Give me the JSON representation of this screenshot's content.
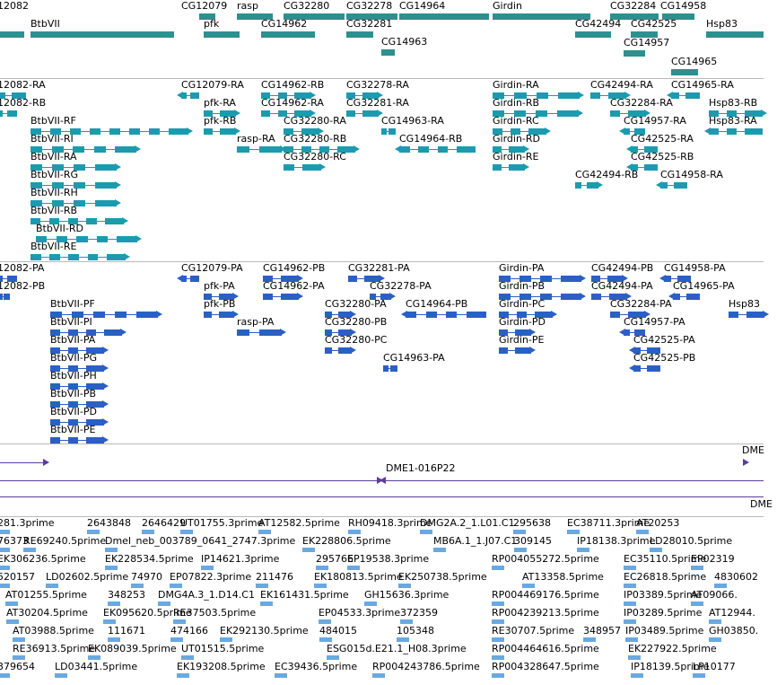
{
  "genes": [
    {
      "label": "12082"
    },
    {
      "label": "BtbVII"
    },
    {
      "label": "CG12079"
    },
    {
      "label": "pfk"
    },
    {
      "label": "rasp"
    },
    {
      "label": "CG32280"
    },
    {
      "label": "CG14962"
    },
    {
      "label": "CG32278"
    },
    {
      "label": "CG32281"
    },
    {
      "label": "CG14963"
    },
    {
      "label": "CG14964"
    },
    {
      "label": "Girdin"
    },
    {
      "label": "CG42494"
    },
    {
      "label": "CG32284"
    },
    {
      "label": "CG14958"
    },
    {
      "label": "CG42525"
    },
    {
      "label": "CG14957"
    },
    {
      "label": "Hsp83"
    },
    {
      "label": "CG14965"
    }
  ],
  "transcripts": [
    {
      "label": "12082-RA"
    },
    {
      "label": "12082-RB"
    },
    {
      "label": "BtbVII-RF"
    },
    {
      "label": "BtbVII-RI"
    },
    {
      "label": "BtbVII-RA"
    },
    {
      "label": "BtbVII-RG"
    },
    {
      "label": "BtbVII-RH"
    },
    {
      "label": "BtbVII-RB"
    },
    {
      "label": "BtbVII-RD"
    },
    {
      "label": "BtbVII-RE"
    },
    {
      "label": "CG12079-RA"
    },
    {
      "label": "pfk-RA"
    },
    {
      "label": "pfk-RB"
    },
    {
      "label": "rasp-RA"
    },
    {
      "label": "CG14962-RB"
    },
    {
      "label": "CG14962-RA"
    },
    {
      "label": "CG32280-RA"
    },
    {
      "label": "CG32280-RB"
    },
    {
      "label": "CG32280-RC"
    },
    {
      "label": "CG32278-RA"
    },
    {
      "label": "CG32281-RA"
    },
    {
      "label": "CG14963-RA"
    },
    {
      "label": "CG14964-RB"
    },
    {
      "label": "Girdin-RA"
    },
    {
      "label": "Girdin-RB"
    },
    {
      "label": "Girdin-RC"
    },
    {
      "label": "Girdin-RD"
    },
    {
      "label": "Girdin-RE"
    },
    {
      "label": "CG42494-RA"
    },
    {
      "label": "CG42494-RB"
    },
    {
      "label": "CG32284-RA"
    },
    {
      "label": "CG14957-RA"
    },
    {
      "label": "CG42525-RA"
    },
    {
      "label": "CG42525-RB"
    },
    {
      "label": "CG14965-RA"
    },
    {
      "label": "Hsp83-RB"
    },
    {
      "label": "Hsp83-RA"
    },
    {
      "label": "CG14958-RA"
    }
  ],
  "proteins": [
    {
      "label": "12082-PA"
    },
    {
      "label": "12082-PB"
    },
    {
      "label": "BtbVII-PF"
    },
    {
      "label": "BtbVII-PI"
    },
    {
      "label": "BtbVII-PA"
    },
    {
      "label": "BtbVII-PG"
    },
    {
      "label": "BtbVII-PH"
    },
    {
      "label": "BtbVII-PB"
    },
    {
      "label": "BtbVII-PD"
    },
    {
      "label": "BtbVII-PE"
    },
    {
      "label": "CG12079-PA"
    },
    {
      "label": "pfk-PA"
    },
    {
      "label": "pfk-PB"
    },
    {
      "label": "rasp-PA"
    },
    {
      "label": "CG14962-PB"
    },
    {
      "label": "CG14962-PA"
    },
    {
      "label": "CG32281-PA"
    },
    {
      "label": "CG32278-PA"
    },
    {
      "label": "CG32280-PA"
    },
    {
      "label": "CG32280-PB"
    },
    {
      "label": "CG32280-PC"
    },
    {
      "label": "CG14964-PB"
    },
    {
      "label": "CG14963-PA"
    },
    {
      "label": "Girdin-PA"
    },
    {
      "label": "Girdin-PB"
    },
    {
      "label": "Girdin-PC"
    },
    {
      "label": "Girdin-PD"
    },
    {
      "label": "Girdin-PE"
    },
    {
      "label": "CG42494-PB"
    },
    {
      "label": "CG14958-PA"
    },
    {
      "label": "CG42494-PA"
    },
    {
      "label": "CG14965-PA"
    },
    {
      "label": "CG32284-PA"
    },
    {
      "label": "CG14957-PA"
    },
    {
      "label": "CG42525-PA"
    },
    {
      "label": "CG42525-PB"
    },
    {
      "label": "Hsp83"
    }
  ],
  "clones": [
    {
      "label": "DME1-016P22"
    },
    {
      "label": "DME"
    },
    {
      "label": "DME"
    }
  ],
  "ests": [
    {
      "label": "281.3prime"
    },
    {
      "label": "2643848"
    },
    {
      "label": "2646429"
    },
    {
      "label": "UT01755.3prime"
    },
    {
      "label": "AT12582.5prime"
    },
    {
      "label": "RH09418.3prime"
    },
    {
      "label": "DMG2A.2_1.L01.C1"
    },
    {
      "label": "295638"
    },
    {
      "label": "EC38711.3prime"
    },
    {
      "label": "AT20253"
    },
    {
      "label": "76373"
    },
    {
      "label": "RE69240.5prime"
    },
    {
      "label": "Dmel_neb_003789_0641_2747.3prime"
    },
    {
      "label": "EK228806.5prime"
    },
    {
      "label": "MB6A.1_1.J07.C1"
    },
    {
      "label": "309145"
    },
    {
      "label": "IP18138.3prime"
    },
    {
      "label": "LD28010.5prime"
    },
    {
      "label": "EK306236.5prime"
    },
    {
      "label": "EK228534.5prime"
    },
    {
      "label": "IP14621.3prime"
    },
    {
      "label": "295766"
    },
    {
      "label": "EP19538.3prime"
    },
    {
      "label": "RP004055272.5prime"
    },
    {
      "label": "EC35110.5prime"
    },
    {
      "label": "EP02319"
    },
    {
      "label": "520157"
    },
    {
      "label": "LD02602.5prime"
    },
    {
      "label": "74970"
    },
    {
      "label": "EP07822.3prime"
    },
    {
      "label": "211476"
    },
    {
      "label": "EK180813.5prime"
    },
    {
      "label": "EK250738.5prime"
    },
    {
      "label": "AT13358.5prime"
    },
    {
      "label": "EC26818.5prime"
    },
    {
      "label": "4830602"
    },
    {
      "label": "AT01255.5prime"
    },
    {
      "label": "348253"
    },
    {
      "label": "DMG4A.3_1.D14.C1"
    },
    {
      "label": "EK161431.5prime"
    },
    {
      "label": "GH15636.3prime"
    },
    {
      "label": "RP004469176.5prime"
    },
    {
      "label": "IP03389.5prime"
    },
    {
      "label": "AT09066."
    },
    {
      "label": "AT30204.5prime"
    },
    {
      "label": "EK095620.5prime"
    },
    {
      "label": "RE37503.5prime"
    },
    {
      "label": "EP04533.3prime"
    },
    {
      "label": "372359"
    },
    {
      "label": "RP004239213.5prime"
    },
    {
      "label": "IP03289.5prime"
    },
    {
      "label": "AT12944."
    },
    {
      "label": "AT03988.5prime"
    },
    {
      "label": "111671"
    },
    {
      "label": "474166"
    },
    {
      "label": "EK292130.5prime"
    },
    {
      "label": "484015"
    },
    {
      "label": "105348"
    },
    {
      "label": "RE30707.5prime"
    },
    {
      "label": "348957"
    },
    {
      "label": "IP03489.5prime"
    },
    {
      "label": "GH03850."
    },
    {
      "label": "RE36913.5prime"
    },
    {
      "label": "EK089039.5prime"
    },
    {
      "label": "UT01515.5prime"
    },
    {
      "label": "ESG015d.E21.1_H08.3prime"
    },
    {
      "label": "RP004464616.5prime"
    },
    {
      "label": "EK227922.5prime"
    },
    {
      "label": "379654"
    },
    {
      "label": "LD03441.5prime"
    },
    {
      "label": "EK193208.5prime"
    },
    {
      "label": "EC39436.5prime"
    },
    {
      "label": "RP004243786.5prime"
    },
    {
      "label": "RP004328647.5prime"
    },
    {
      "label": "IP18139.5prime"
    },
    {
      "label": "LP10177"
    }
  ],
  "colors": {
    "gene": "#2e8f8f",
    "transcript": "#1b9bb0",
    "protein": "#2c5fc2",
    "clone": "#5c3d9e",
    "est": "#6aa9e0",
    "separator": "#b9b9b9"
  }
}
